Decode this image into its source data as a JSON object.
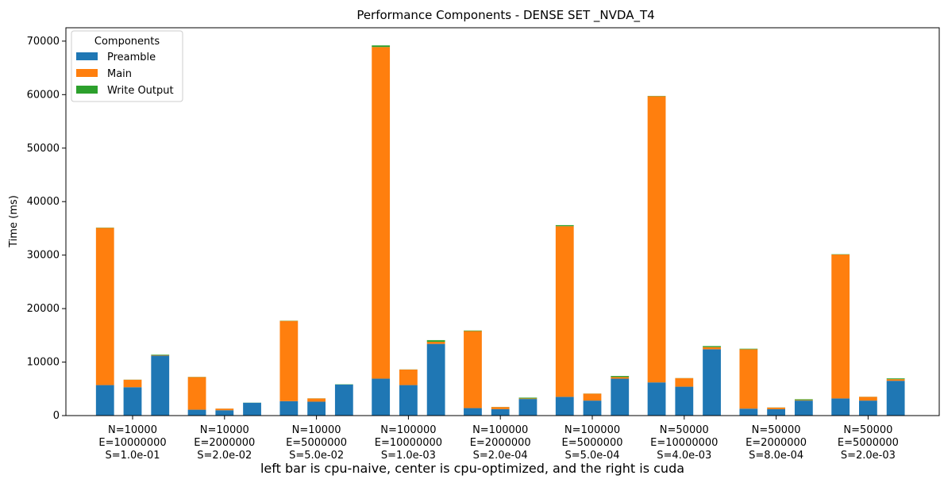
{
  "chart_data": {
    "type": "bar",
    "stacked": true,
    "title": "Performance Components - DENSE SET _NVDA_T4",
    "xlabel": "",
    "ylabel": "Time (ms)",
    "ylim": [
      0,
      72500
    ],
    "yticks": [
      0,
      10000,
      20000,
      30000,
      40000,
      50000,
      60000,
      70000
    ],
    "grid": false,
    "legend": {
      "title": "Components",
      "placement": "top-left"
    },
    "caption": "left bar is cpu-naive, center is cpu-optimized, and the right is cuda",
    "categories": [
      [
        "N=10000",
        "E=10000000",
        "S=1.0e-01"
      ],
      [
        "N=10000",
        "E=2000000",
        "S=2.0e-02"
      ],
      [
        "N=10000",
        "E=5000000",
        "S=5.0e-02"
      ],
      [
        "N=100000",
        "E=10000000",
        "S=1.0e-03"
      ],
      [
        "N=100000",
        "E=2000000",
        "S=2.0e-04"
      ],
      [
        "N=100000",
        "E=5000000",
        "S=5.0e-04"
      ],
      [
        "N=50000",
        "E=10000000",
        "S=4.0e-03"
      ],
      [
        "N=50000",
        "E=2000000",
        "S=8.0e-04"
      ],
      [
        "N=50000",
        "E=5000000",
        "S=2.0e-03"
      ]
    ],
    "colors": {
      "Preamble": "#1f77b4",
      "Main": "#ff7f0e",
      "Write Output": "#2ca02c"
    },
    "series": [
      {
        "name": "Preamble",
        "cpu_naive": [
          5700,
          1100,
          2700,
          6900,
          1400,
          3500,
          6200,
          1300,
          3200
        ],
        "cpu_optimized": [
          5300,
          1000,
          2600,
          5700,
          1200,
          2800,
          5400,
          1200,
          2800
        ],
        "cuda": [
          11200,
          2400,
          5800,
          13400,
          3100,
          6900,
          12400,
          2800,
          6500
        ]
      },
      {
        "name": "Main",
        "cpu_naive": [
          29400,
          6100,
          15000,
          62000,
          14400,
          31900,
          53500,
          11100,
          26900
        ],
        "cpu_optimized": [
          1400,
          300,
          600,
          2900,
          400,
          1300,
          1600,
          300,
          700
        ],
        "cuda": [
          100,
          0,
          0,
          400,
          100,
          300,
          400,
          100,
          300
        ]
      },
      {
        "name": "Write Output",
        "cpu_naive": [
          50,
          30,
          40,
          300,
          100,
          200,
          60,
          100,
          60
        ],
        "cpu_optimized": [
          20,
          10,
          20,
          20,
          20,
          20,
          20,
          20,
          20
        ],
        "cuda": [
          100,
          20,
          50,
          300,
          150,
          200,
          200,
          150,
          150
        ]
      }
    ],
    "variants": [
      "cpu_naive",
      "cpu_optimized",
      "cuda"
    ]
  }
}
